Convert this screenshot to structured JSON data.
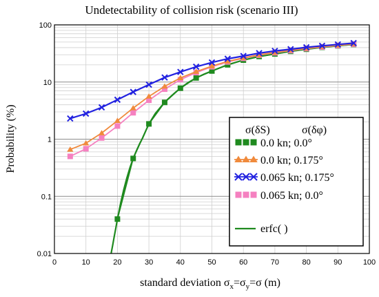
{
  "chart_data": {
    "type": "line",
    "title": "Undetectability of collision risk (scenario III)",
    "xlabel": "standard deviation σ",
    "xlabel_parts": {
      "main": "standard deviation σ",
      "sub_x": "x",
      "eq1": "=σ",
      "sub_y": "y",
      "tail": "=σ (m)"
    },
    "ylabel": "Probability (%)",
    "xlim": [
      0,
      100
    ],
    "ylim": [
      0.01,
      100
    ],
    "yscale": "log",
    "xticks": [
      "0",
      "10",
      "20",
      "30",
      "40",
      "50",
      "60",
      "70",
      "80",
      "90",
      "100"
    ],
    "yticks": [
      "0.01",
      "0.1",
      "1",
      "10",
      "100"
    ],
    "grid": true,
    "legend": {
      "placement": "right",
      "header": [
        "σ(δS)",
        "σ(δφ)"
      ]
    },
    "series": [
      {
        "name": "0.0 kn; 0.0°",
        "color": "#1f8a1f",
        "marker": "square",
        "x": [
          20,
          25,
          30,
          35,
          40,
          45,
          50,
          55,
          60,
          65,
          70,
          75,
          80,
          85,
          90,
          95
        ],
        "y": [
          0.04,
          0.46,
          1.85,
          4.4,
          7.8,
          11.8,
          15.6,
          20.0,
          24.2,
          28.0,
          31.0,
          34.5,
          37.5,
          40.5,
          43.0,
          45.5
        ]
      },
      {
        "name": "0.0 kn; 0.175°",
        "color": "#f08a3c",
        "marker": "triangle",
        "x": [
          5,
          10,
          15,
          20,
          25,
          30,
          35,
          40,
          45,
          50,
          55,
          60,
          65,
          70,
          75,
          80,
          85,
          90,
          95
        ],
        "y": [
          0.66,
          0.85,
          1.28,
          2.1,
          3.5,
          5.6,
          8.4,
          11.8,
          15.2,
          19.0,
          23.0,
          26.5,
          30.0,
          33.0,
          36.0,
          38.8,
          41.5,
          44.0,
          46.5
        ]
      },
      {
        "name": "0.065 kn; 0.175°",
        "color": "#2222e0",
        "marker": "x",
        "x": [
          5,
          10,
          15,
          20,
          25,
          30,
          35,
          40,
          45,
          50,
          55,
          60,
          65,
          70,
          75,
          80,
          85,
          90,
          95
        ],
        "y": [
          2.3,
          2.8,
          3.6,
          4.9,
          6.7,
          9.0,
          12.0,
          15.0,
          18.5,
          22.0,
          25.5,
          28.5,
          32.0,
          35.0,
          37.5,
          40.5,
          43.0,
          45.5,
          48.0
        ]
      },
      {
        "name": "0.065 kn; 0.0°",
        "color": "#f580c0",
        "marker": "square",
        "x": [
          5,
          10,
          15,
          20,
          25,
          30,
          35,
          40,
          45,
          50,
          55,
          60,
          65,
          70,
          75,
          80,
          85,
          90,
          95
        ],
        "y": [
          0.5,
          0.68,
          1.05,
          1.7,
          2.9,
          4.8,
          7.5,
          11.0,
          14.6,
          18.5,
          22.5,
          26.0,
          29.5,
          32.5,
          35.5,
          38.5,
          41.0,
          43.5,
          46.0
        ]
      },
      {
        "name": "erfc( )",
        "color": "#1f8a1f",
        "marker": "none",
        "x": [
          18,
          18.5,
          19,
          19.5,
          20,
          21,
          22,
          23,
          24,
          25,
          26,
          27,
          28,
          29,
          30,
          32,
          34,
          36,
          38,
          40,
          42.5,
          45,
          47.5,
          50,
          55,
          60,
          65,
          70,
          75,
          80,
          85,
          90,
          95
        ],
        "y": [
          0.01,
          0.014,
          0.02,
          0.028,
          0.04,
          0.075,
          0.13,
          0.21,
          0.32,
          0.46,
          0.62,
          0.82,
          1.05,
          1.4,
          1.85,
          2.8,
          3.8,
          5.0,
          6.3,
          7.8,
          9.8,
          11.8,
          13.7,
          15.6,
          20.0,
          24.2,
          28.0,
          31.0,
          34.5,
          37.5,
          40.5,
          43.0,
          45.5
        ]
      }
    ]
  }
}
